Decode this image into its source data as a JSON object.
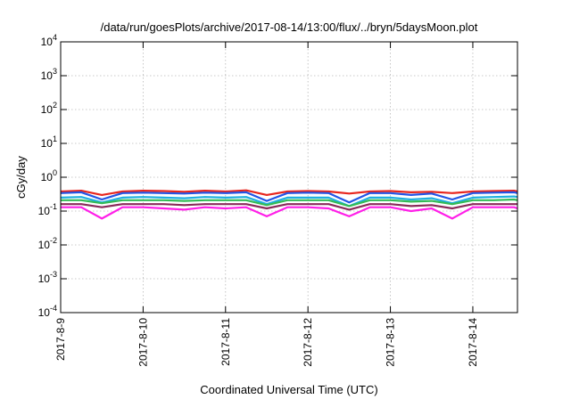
{
  "chart_data": {
    "type": "line",
    "title": "/data/run/goesPlots/archive/2017-08-14/13:00/flux/../bryn/5daysMoon.plot",
    "xlabel": "Coordinated Universal Time (UTC)",
    "ylabel": "cGy/day",
    "yscale": "log",
    "ylim": [
      0.0001,
      10000
    ],
    "yticks": [
      {
        "value": 0.0001,
        "base": "10",
        "exp": "-4"
      },
      {
        "value": 0.001,
        "base": "10",
        "exp": "-3"
      },
      {
        "value": 0.01,
        "base": "10",
        "exp": "-2"
      },
      {
        "value": 0.1,
        "base": "10",
        "exp": "-1"
      },
      {
        "value": 1,
        "base": "10",
        "exp": "0"
      },
      {
        "value": 10,
        "base": "10",
        "exp": "1"
      },
      {
        "value": 100,
        "base": "10",
        "exp": "2"
      },
      {
        "value": 1000,
        "base": "10",
        "exp": "3"
      },
      {
        "value": 10000,
        "base": "10",
        "exp": "4"
      }
    ],
    "xlim": [
      "2017-08-09 00:00",
      "2017-08-14 13:00"
    ],
    "xticks": [
      "2017-8-9",
      "2017-8-10",
      "2017-8-11",
      "2017-8-12",
      "2017-8-13",
      "2017-8-14"
    ],
    "grid": true,
    "x": [
      "2017-08-09 00:00",
      "2017-08-09 06:00",
      "2017-08-09 12:00",
      "2017-08-09 18:00",
      "2017-08-10 00:00",
      "2017-08-10 06:00",
      "2017-08-10 12:00",
      "2017-08-10 18:00",
      "2017-08-11 00:00",
      "2017-08-11 06:00",
      "2017-08-11 12:00",
      "2017-08-11 18:00",
      "2017-08-12 00:00",
      "2017-08-12 06:00",
      "2017-08-12 12:00",
      "2017-08-12 18:00",
      "2017-08-13 00:00",
      "2017-08-13 06:00",
      "2017-08-13 12:00",
      "2017-08-13 18:00",
      "2017-08-14 00:00",
      "2017-08-14 06:00",
      "2017-08-14 12:00",
      "2017-08-14 13:00"
    ],
    "series": [
      {
        "color": "#e8261f",
        "values": [
          0.38,
          0.4,
          0.3,
          0.38,
          0.4,
          0.39,
          0.37,
          0.4,
          0.38,
          0.41,
          0.3,
          0.38,
          0.39,
          0.38,
          0.33,
          0.38,
          0.39,
          0.36,
          0.37,
          0.34,
          0.38,
          0.39,
          0.4,
          0.38
        ]
      },
      {
        "color": "#2255e6",
        "values": [
          0.34,
          0.36,
          0.22,
          0.34,
          0.35,
          0.34,
          0.33,
          0.35,
          0.34,
          0.36,
          0.2,
          0.34,
          0.35,
          0.34,
          0.18,
          0.34,
          0.34,
          0.3,
          0.33,
          0.22,
          0.34,
          0.35,
          0.36,
          0.34
        ]
      },
      {
        "color": "#1fb0e0",
        "values": [
          0.25,
          0.26,
          0.18,
          0.25,
          0.26,
          0.25,
          0.24,
          0.26,
          0.25,
          0.26,
          0.16,
          0.25,
          0.25,
          0.25,
          0.14,
          0.25,
          0.25,
          0.22,
          0.24,
          0.17,
          0.25,
          0.26,
          0.27,
          0.26
        ]
      },
      {
        "color": "#33bb55",
        "values": [
          0.21,
          0.21,
          0.17,
          0.21,
          0.21,
          0.21,
          0.2,
          0.21,
          0.21,
          0.21,
          0.15,
          0.21,
          0.21,
          0.21,
          0.14,
          0.21,
          0.21,
          0.19,
          0.2,
          0.16,
          0.21,
          0.21,
          0.22,
          0.21
        ]
      },
      {
        "color": "#8a2a5a",
        "values": [
          0.16,
          0.16,
          0.13,
          0.16,
          0.16,
          0.16,
          0.15,
          0.16,
          0.16,
          0.16,
          0.12,
          0.16,
          0.16,
          0.16,
          0.11,
          0.16,
          0.16,
          0.14,
          0.15,
          0.12,
          0.16,
          0.16,
          0.16,
          0.16
        ]
      },
      {
        "color": "#ff1fe8",
        "values": [
          0.13,
          0.13,
          0.06,
          0.13,
          0.13,
          0.12,
          0.11,
          0.13,
          0.12,
          0.13,
          0.07,
          0.13,
          0.13,
          0.12,
          0.07,
          0.13,
          0.13,
          0.1,
          0.12,
          0.06,
          0.13,
          0.13,
          0.13,
          0.12
        ]
      }
    ]
  }
}
